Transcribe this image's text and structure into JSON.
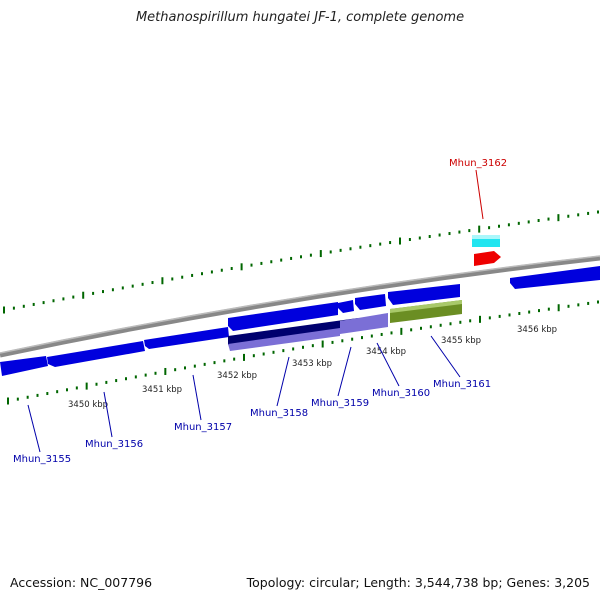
{
  "title": "Methanospirillum hungatei JF-1, complete genome",
  "footer": {
    "accession": "Accession: NC_007796",
    "summary": "Topology: circular; Length: 3,544,738 bp; Genes: 3,205"
  },
  "colors": {
    "gene_forward": "#0000dd",
    "gene_reverse": "#0000dd",
    "label_default": "#0000aa",
    "label_highlight": "#cc0000",
    "tick": "#006600",
    "backbone": "#888888",
    "feature_dark": "#00006e",
    "feature_light": "#7b6fd6",
    "feature_green": "#6b8e23",
    "feature_cyan": "#22e5f0",
    "feature_red": "#ee0000"
  },
  "kbp_labels": [
    "3450 kbp",
    "3451 kbp",
    "3452 kbp",
    "3453 kbp",
    "3454 kbp",
    "3455 kbp",
    "3456 kbp"
  ],
  "genes": [
    {
      "name": "Mhun_3155",
      "highlight": false
    },
    {
      "name": "Mhun_3156",
      "highlight": false
    },
    {
      "name": "Mhun_3157",
      "highlight": false
    },
    {
      "name": "Mhun_3158",
      "highlight": false
    },
    {
      "name": "Mhun_3159",
      "highlight": false
    },
    {
      "name": "Mhun_3160",
      "highlight": false
    },
    {
      "name": "Mhun_3161",
      "highlight": false
    },
    {
      "name": "Mhun_3162",
      "highlight": true
    }
  ]
}
